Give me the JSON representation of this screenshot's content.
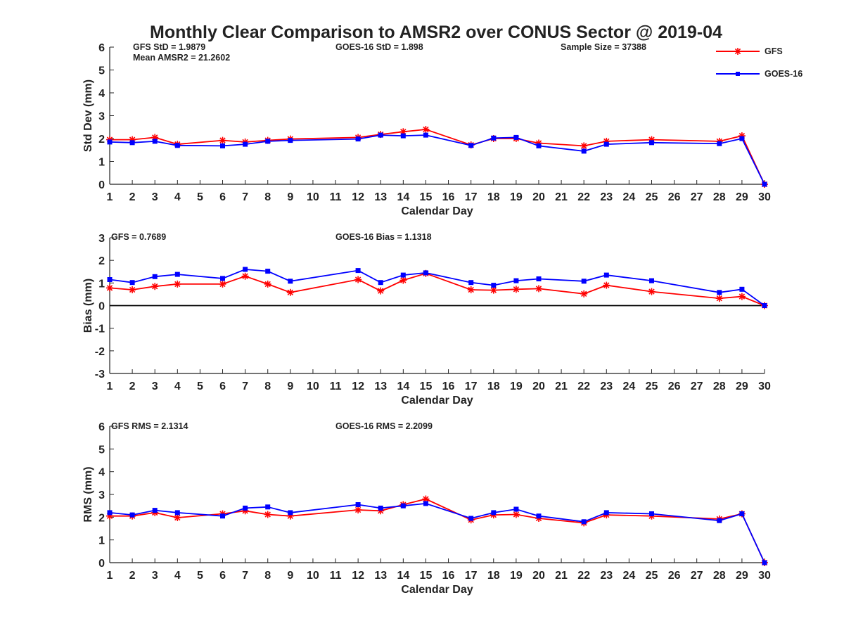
{
  "figure": {
    "title": "Monthly Clear Comparison to AMSR2 over CONUS Sector @ 2019-04"
  },
  "legend": {
    "entries": [
      {
        "label": "GFS",
        "color": "#ff0000",
        "marker": "asterisk"
      },
      {
        "label": "GOES-16",
        "color": "#0000ff",
        "marker": "square"
      }
    ]
  },
  "panels": {
    "std": {
      "stats": {
        "gfs_std": "GFS StD = 1.9879",
        "mean_amsr2": "Mean AMSR2 = 21.2602",
        "goes_std": "GOES-16 StD = 1.898",
        "sample_size": "Sample Size = 37388"
      }
    },
    "bias": {
      "stats": {
        "gfs_bias": "GFS = 0.7689",
        "goes_bias": "GOES-16 Bias = 1.1318"
      }
    },
    "rms": {
      "stats": {
        "gfs_rms": "GFS RMS = 2.1314",
        "goes_rms": "GOES-16 RMS = 2.2099"
      }
    }
  },
  "colors": {
    "gfs": "#ff0000",
    "goes": "#0000ff",
    "axis": "#222222",
    "zero_line": "#000000"
  },
  "chart_data": [
    {
      "id": "std",
      "type": "line",
      "title": "Monthly Clear Comparison to AMSR2 over CONUS Sector @ 2019-04",
      "xlabel": "Calendar Day",
      "ylabel": "Std Dev (mm)",
      "xlim": [
        1,
        30
      ],
      "ylim": [
        0,
        6
      ],
      "xticks": [
        1,
        2,
        3,
        4,
        5,
        6,
        7,
        8,
        9,
        10,
        11,
        12,
        13,
        14,
        15,
        16,
        17,
        18,
        19,
        20,
        21,
        22,
        23,
        24,
        25,
        26,
        27,
        28,
        29,
        30
      ],
      "yticks": [
        0,
        1,
        2,
        3,
        4,
        5,
        6
      ],
      "grid": false,
      "legend_position": "top-right",
      "x": [
        1,
        2,
        3,
        4,
        6,
        7,
        8,
        9,
        12,
        13,
        14,
        15,
        17,
        18,
        19,
        20,
        22,
        23,
        25,
        28,
        29,
        30
      ],
      "series": [
        {
          "name": "GFS",
          "values": [
            1.95,
            1.95,
            2.05,
            1.75,
            1.92,
            1.85,
            1.92,
            1.98,
            2.05,
            2.18,
            2.3,
            2.4,
            1.72,
            2.0,
            2.0,
            1.8,
            1.68,
            1.88,
            1.95,
            1.88,
            2.12,
            0.0
          ]
        },
        {
          "name": "GOES-16",
          "values": [
            1.85,
            1.82,
            1.88,
            1.7,
            1.68,
            1.75,
            1.88,
            1.92,
            1.98,
            2.15,
            2.12,
            2.15,
            1.7,
            2.02,
            2.05,
            1.68,
            1.45,
            1.75,
            1.82,
            1.78,
            2.0,
            0.0
          ]
        }
      ]
    },
    {
      "id": "bias",
      "type": "line",
      "xlabel": "Calendar Day",
      "ylabel": "Bias (mm)",
      "xlim": [
        1,
        30
      ],
      "ylim": [
        -3,
        3
      ],
      "xticks": [
        1,
        2,
        3,
        4,
        5,
        6,
        7,
        8,
        9,
        10,
        11,
        12,
        13,
        14,
        15,
        16,
        17,
        18,
        19,
        20,
        21,
        22,
        23,
        24,
        25,
        26,
        27,
        28,
        29,
        30
      ],
      "yticks": [
        -3,
        -2,
        -1,
        0,
        1,
        2,
        3
      ],
      "grid": false,
      "zero_line": true,
      "x": [
        1,
        2,
        3,
        4,
        6,
        7,
        8,
        9,
        12,
        13,
        14,
        15,
        17,
        18,
        19,
        20,
        22,
        23,
        25,
        28,
        29,
        30
      ],
      "series": [
        {
          "name": "GFS",
          "values": [
            0.78,
            0.7,
            0.85,
            0.95,
            0.95,
            1.3,
            0.95,
            0.58,
            1.15,
            0.65,
            1.12,
            1.42,
            0.7,
            0.68,
            0.72,
            0.75,
            0.52,
            0.9,
            0.62,
            0.32,
            0.4,
            0.0
          ]
        },
        {
          "name": "GOES-16",
          "values": [
            1.15,
            1.02,
            1.28,
            1.38,
            1.2,
            1.6,
            1.52,
            1.08,
            1.55,
            1.02,
            1.35,
            1.45,
            1.02,
            0.9,
            1.1,
            1.18,
            1.08,
            1.35,
            1.1,
            0.58,
            0.72,
            0.0
          ]
        }
      ]
    },
    {
      "id": "rms",
      "type": "line",
      "xlabel": "Calendar Day",
      "ylabel": "RMS (mm)",
      "xlim": [
        1,
        30
      ],
      "ylim": [
        0,
        6
      ],
      "xticks": [
        1,
        2,
        3,
        4,
        5,
        6,
        7,
        8,
        9,
        10,
        11,
        12,
        13,
        14,
        15,
        16,
        17,
        18,
        19,
        20,
        21,
        22,
        23,
        24,
        25,
        26,
        27,
        28,
        29,
        30
      ],
      "yticks": [
        0,
        1,
        2,
        3,
        4,
        5,
        6
      ],
      "grid": false,
      "x": [
        1,
        2,
        3,
        4,
        6,
        7,
        8,
        9,
        12,
        13,
        14,
        15,
        17,
        18,
        19,
        20,
        22,
        23,
        25,
        28,
        29,
        30
      ],
      "series": [
        {
          "name": "GFS",
          "values": [
            2.05,
            2.05,
            2.2,
            1.98,
            2.15,
            2.28,
            2.12,
            2.05,
            2.32,
            2.28,
            2.55,
            2.8,
            1.88,
            2.1,
            2.12,
            1.95,
            1.75,
            2.1,
            2.05,
            1.92,
            2.15,
            0.0
          ]
        },
        {
          "name": "GOES-16",
          "values": [
            2.2,
            2.1,
            2.3,
            2.2,
            2.05,
            2.4,
            2.45,
            2.2,
            2.55,
            2.4,
            2.5,
            2.6,
            1.95,
            2.2,
            2.35,
            2.05,
            1.8,
            2.2,
            2.15,
            1.85,
            2.15,
            0.0
          ]
        }
      ]
    }
  ]
}
